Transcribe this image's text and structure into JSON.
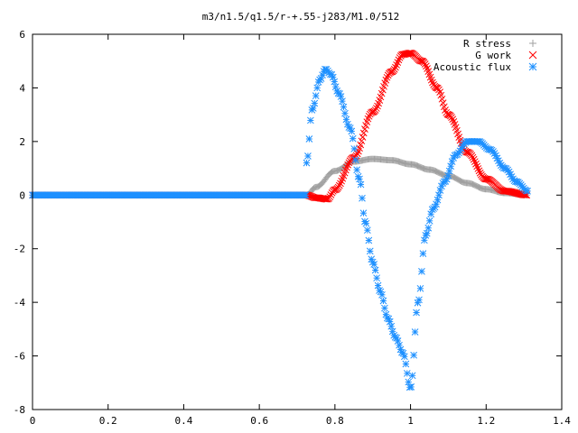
{
  "chart_data": {
    "type": "scatter",
    "title": "m3/n1.5/q1.5/r-+.55-j283/M1.0/512",
    "xlabel": "",
    "ylabel": "",
    "xlim": [
      0,
      1.4
    ],
    "ylim": [
      -8,
      6
    ],
    "x_ticks": [
      "0",
      "0.2",
      "0.4",
      "0.6",
      "0.8",
      "1",
      "1.2",
      "1.4"
    ],
    "y_ticks": [
      "6",
      "4",
      "2",
      "0",
      "-2",
      "-4",
      "-6",
      "-8"
    ],
    "grid": false,
    "legend_position": "top-right",
    "x_range": [
      0,
      1.31
    ],
    "zero_until": 0.725,
    "series": [
      {
        "name": "R stress",
        "marker": "+",
        "color": "#a0a0a0",
        "points": [
          [
            0.725,
            0.0
          ],
          [
            0.75,
            0.3
          ],
          [
            0.8,
            0.9
          ],
          [
            0.85,
            1.25
          ],
          [
            0.9,
            1.35
          ],
          [
            0.95,
            1.3
          ],
          [
            1.0,
            1.15
          ],
          [
            1.05,
            0.95
          ],
          [
            1.1,
            0.72
          ],
          [
            1.15,
            0.45
          ],
          [
            1.2,
            0.22
          ],
          [
            1.25,
            0.08
          ],
          [
            1.31,
            0.0
          ]
        ]
      },
      {
        "name": "G work",
        "marker": "x",
        "color": "#ff0000",
        "points": [
          [
            0.725,
            0.0
          ],
          [
            0.75,
            -0.1
          ],
          [
            0.78,
            -0.15
          ],
          [
            0.8,
            0.2
          ],
          [
            0.85,
            1.4
          ],
          [
            0.9,
            3.1
          ],
          [
            0.95,
            4.6
          ],
          [
            0.98,
            5.25
          ],
          [
            1.0,
            5.3
          ],
          [
            1.03,
            5.0
          ],
          [
            1.07,
            4.0
          ],
          [
            1.1,
            3.0
          ],
          [
            1.15,
            1.6
          ],
          [
            1.2,
            0.6
          ],
          [
            1.25,
            0.15
          ],
          [
            1.31,
            0.0
          ]
        ]
      },
      {
        "name": "Acoustic flux",
        "marker": "*",
        "color": "#1e90ff",
        "points": [
          [
            0.725,
            1.2
          ],
          [
            0.74,
            3.2
          ],
          [
            0.76,
            4.3
          ],
          [
            0.775,
            4.7
          ],
          [
            0.79,
            4.5
          ],
          [
            0.81,
            3.8
          ],
          [
            0.84,
            2.5
          ],
          [
            0.865,
            0.6
          ],
          [
            0.88,
            -1.0
          ],
          [
            0.9,
            -2.5
          ],
          [
            0.92,
            -3.6
          ],
          [
            0.94,
            -4.6
          ],
          [
            0.96,
            -5.3
          ],
          [
            0.98,
            -5.9
          ],
          [
            1.0,
            -7.2
          ],
          [
            1.02,
            -4.0
          ],
          [
            1.04,
            -1.5
          ],
          [
            1.06,
            -0.5
          ],
          [
            1.09,
            0.5
          ],
          [
            1.12,
            1.5
          ],
          [
            1.15,
            2.0
          ],
          [
            1.18,
            2.0
          ],
          [
            1.21,
            1.7
          ],
          [
            1.25,
            1.0
          ],
          [
            1.28,
            0.5
          ],
          [
            1.31,
            0.15
          ]
        ]
      }
    ]
  }
}
